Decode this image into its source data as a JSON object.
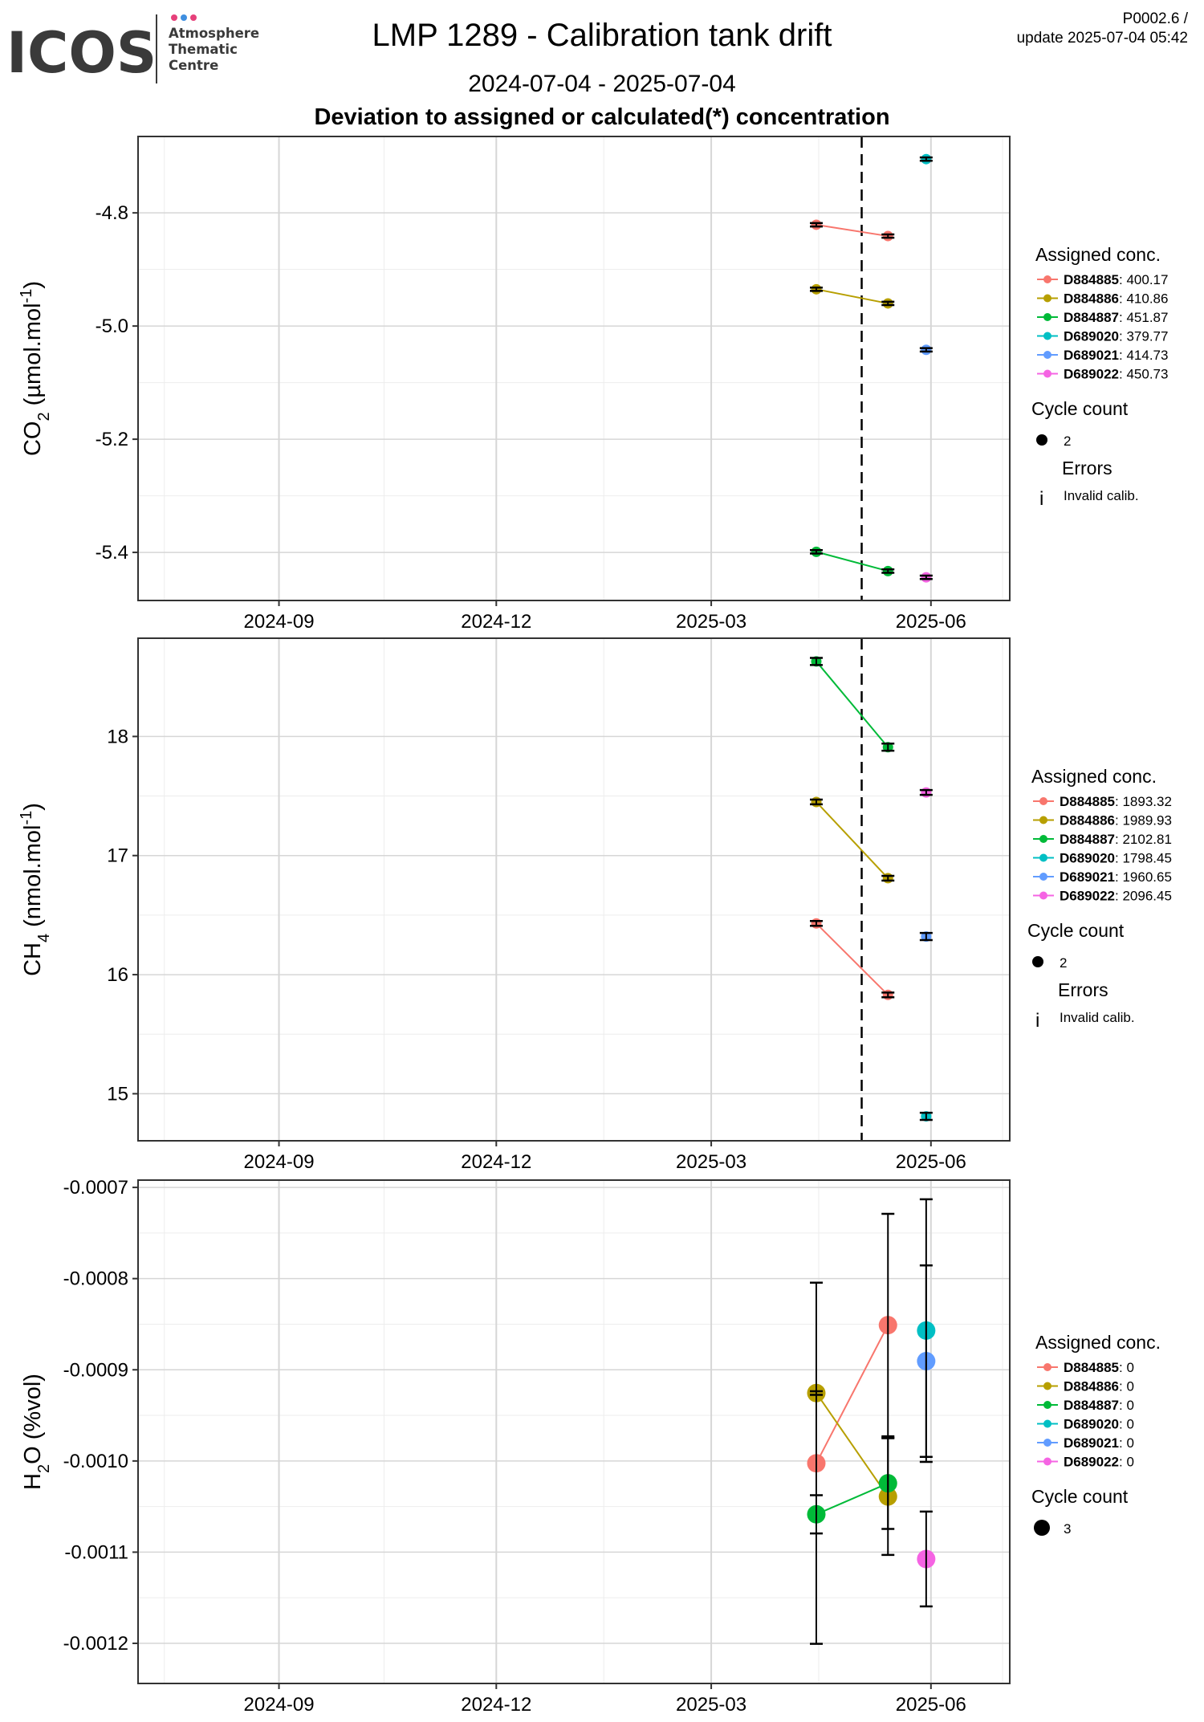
{
  "header": {
    "logo": {
      "brand": "ICOS",
      "lines": [
        "Atmosphere",
        "Thematic",
        "Centre"
      ]
    },
    "title": "LMP 1289 - Calibration tank drift",
    "date_range": "2024-07-04 - 2025-07-04",
    "panel_heading": "Deviation to assigned or calculated(*) concentration",
    "version": "P0002.6 /",
    "update": "update  2025-07-04 05:42"
  },
  "colors": {
    "D884885": "#F8766D",
    "D884886": "#B79F00",
    "D884887": "#00BA38",
    "D689020": "#00BFC4",
    "D689021": "#619CFF",
    "D689022": "#F564E3",
    "vline": "#000000",
    "major_grid": "#d6d6d6",
    "minor_grid": "#ededed"
  },
  "chart_data": [
    {
      "type": "scatter",
      "ylabel": "CO2 (µmol.mol-1)",
      "x_ticks": [
        "2024-09",
        "2024-12",
        "2025-03",
        "2025-06"
      ],
      "xlim": [
        "2024-07-04",
        "2025-07-04"
      ],
      "ylim": [
        -5.485,
        -4.665
      ],
      "y_ticks": [
        -4.8,
        -5.0,
        -5.2,
        -5.4
      ],
      "y_tick_labels": [
        "-4.8",
        "-5.0",
        "-5.2",
        "-5.4"
      ],
      "vline": "2025-05-03",
      "legend": {
        "title": "Assigned conc.",
        "entries": [
          {
            "tank": "D884885",
            "value": ": 400.17"
          },
          {
            "tank": "D884886",
            "value": ": 410.86"
          },
          {
            "tank": "D884887",
            "value": ": 451.87"
          },
          {
            "tank": "D689020",
            "value": ": 379.77"
          },
          {
            "tank": "D689021",
            "value": ": 414.73"
          },
          {
            "tank": "D689022",
            "value": ": 450.73"
          }
        ],
        "cycle_title": "Cycle count",
        "cycle_value": "2",
        "errors_title": "Errors",
        "errors_label": "Invalid calib."
      },
      "series": [
        {
          "name": "D884885",
          "points": [
            {
              "x": "2025-04-14",
              "y": -4.821,
              "err": 0.003
            },
            {
              "x": "2025-05-14",
              "y": -4.841,
              "err": 0.003
            }
          ]
        },
        {
          "name": "D884886",
          "points": [
            {
              "x": "2025-04-14",
              "y": -4.935,
              "err": 0.003
            },
            {
              "x": "2025-05-14",
              "y": -4.96,
              "err": 0.003
            }
          ]
        },
        {
          "name": "D884887",
          "points": [
            {
              "x": "2025-04-14",
              "y": -5.399,
              "err": 0.003
            },
            {
              "x": "2025-05-14",
              "y": -5.433,
              "err": 0.003
            }
          ]
        },
        {
          "name": "D689020",
          "points": [
            {
              "x": "2025-05-30",
              "y": -4.705,
              "err": 0.003
            }
          ]
        },
        {
          "name": "D689021",
          "points": [
            {
              "x": "2025-05-30",
              "y": -5.042,
              "err": 0.003
            }
          ]
        },
        {
          "name": "D689022",
          "points": [
            {
              "x": "2025-05-30",
              "y": -5.444,
              "err": 0.003
            }
          ]
        }
      ]
    },
    {
      "type": "scatter",
      "ylabel": "CH4 (nmol.mol-1)",
      "x_ticks": [
        "2024-09",
        "2024-12",
        "2025-03",
        "2025-06"
      ],
      "xlim": [
        "2024-07-04",
        "2025-07-04"
      ],
      "ylim": [
        14.605,
        18.825
      ],
      "y_ticks": [
        15,
        16,
        17,
        18
      ],
      "y_tick_labels": [
        "15",
        "16",
        "17",
        "18"
      ],
      "vline": "2025-05-03",
      "legend": {
        "title": "Assigned conc.",
        "entries": [
          {
            "tank": "D884885",
            "value": ": 1893.32"
          },
          {
            "tank": "D884886",
            "value": ": 1989.93"
          },
          {
            "tank": "D884887",
            "value": ": 2102.81"
          },
          {
            "tank": "D689020",
            "value": ": 1798.45"
          },
          {
            "tank": "D689021",
            "value": ": 1960.65"
          },
          {
            "tank": "D689022",
            "value": ": 2096.45"
          }
        ],
        "cycle_title": "Cycle count",
        "cycle_value": "2",
        "errors_title": "Errors",
        "errors_label": "Invalid calib."
      },
      "series": [
        {
          "name": "D884885",
          "points": [
            {
              "x": "2025-04-14",
              "y": 16.43,
              "err": 0.02
            },
            {
              "x": "2025-05-14",
              "y": 15.83,
              "err": 0.02
            }
          ]
        },
        {
          "name": "D884886",
          "points": [
            {
              "x": "2025-04-14",
              "y": 17.45,
              "err": 0.02
            },
            {
              "x": "2025-05-14",
              "y": 16.81,
              "err": 0.02
            }
          ]
        },
        {
          "name": "D884887",
          "points": [
            {
              "x": "2025-04-14",
              "y": 18.63,
              "err": 0.03
            },
            {
              "x": "2025-05-14",
              "y": 17.91,
              "err": 0.03
            }
          ]
        },
        {
          "name": "D689020",
          "points": [
            {
              "x": "2025-05-30",
              "y": 14.81,
              "err": 0.03
            }
          ]
        },
        {
          "name": "D689021",
          "points": [
            {
              "x": "2025-05-30",
              "y": 16.32,
              "err": 0.03
            }
          ]
        },
        {
          "name": "D689022",
          "points": [
            {
              "x": "2025-05-30",
              "y": 17.53,
              "err": 0.02
            }
          ]
        }
      ]
    },
    {
      "type": "scatter",
      "ylabel": "H2O (%vol)",
      "x_ticks": [
        "2024-09",
        "2024-12",
        "2025-03",
        "2025-06"
      ],
      "xlim": [
        "2024-07-04",
        "2025-07-04"
      ],
      "ylim": [
        -0.001244,
        -0.000692
      ],
      "y_ticks": [
        -0.0007,
        -0.0008,
        -0.0009,
        -0.001,
        -0.0011,
        -0.0012
      ],
      "y_tick_labels": [
        "-0.0007",
        "-0.0008",
        "-0.0009",
        "-0.0010",
        "-0.0011",
        "-0.0012"
      ],
      "vline": null,
      "legend": {
        "title": "Assigned conc.",
        "entries": [
          {
            "tank": "D884885",
            "value": ": 0"
          },
          {
            "tank": "D884886",
            "value": ": 0"
          },
          {
            "tank": "D884887",
            "value": ": 0"
          },
          {
            "tank": "D689020",
            "value": ": 0"
          },
          {
            "tank": "D689021",
            "value": ": 0"
          },
          {
            "tank": "D689022",
            "value": ": 0"
          }
        ],
        "cycle_title": "Cycle count",
        "cycle_value": "3"
      },
      "series": [
        {
          "name": "D884885",
          "points": [
            {
              "x": "2025-04-14",
              "y": -0.0010025,
              "err": 0.000198
            },
            {
              "x": "2025-05-14",
              "y": -0.000851,
              "err": 0.000122
            }
          ]
        },
        {
          "name": "D884886",
          "points": [
            {
              "x": "2025-04-14",
              "y": -0.0009255,
              "err": 2e-06
            },
            {
              "x": "2025-05-14",
              "y": -0.001039,
              "err": 6.4e-05
            }
          ]
        },
        {
          "name": "D884887",
          "points": [
            {
              "x": "2025-04-14",
              "y": -0.0010585,
              "err": 2.1e-05
            },
            {
              "x": "2025-05-14",
              "y": -0.0010245,
              "err": 5e-05
            }
          ]
        },
        {
          "name": "D689020",
          "points": [
            {
              "x": "2025-05-30",
              "y": -0.000857,
              "err": 0.000144
            }
          ]
        },
        {
          "name": "D689021",
          "points": [
            {
              "x": "2025-05-30",
              "y": -0.0008905,
              "err": 0.000105
            }
          ]
        },
        {
          "name": "D689022",
          "points": [
            {
              "x": "2025-05-30",
              "y": -0.0011075,
              "err": 5.2e-05
            }
          ]
        }
      ]
    }
  ]
}
